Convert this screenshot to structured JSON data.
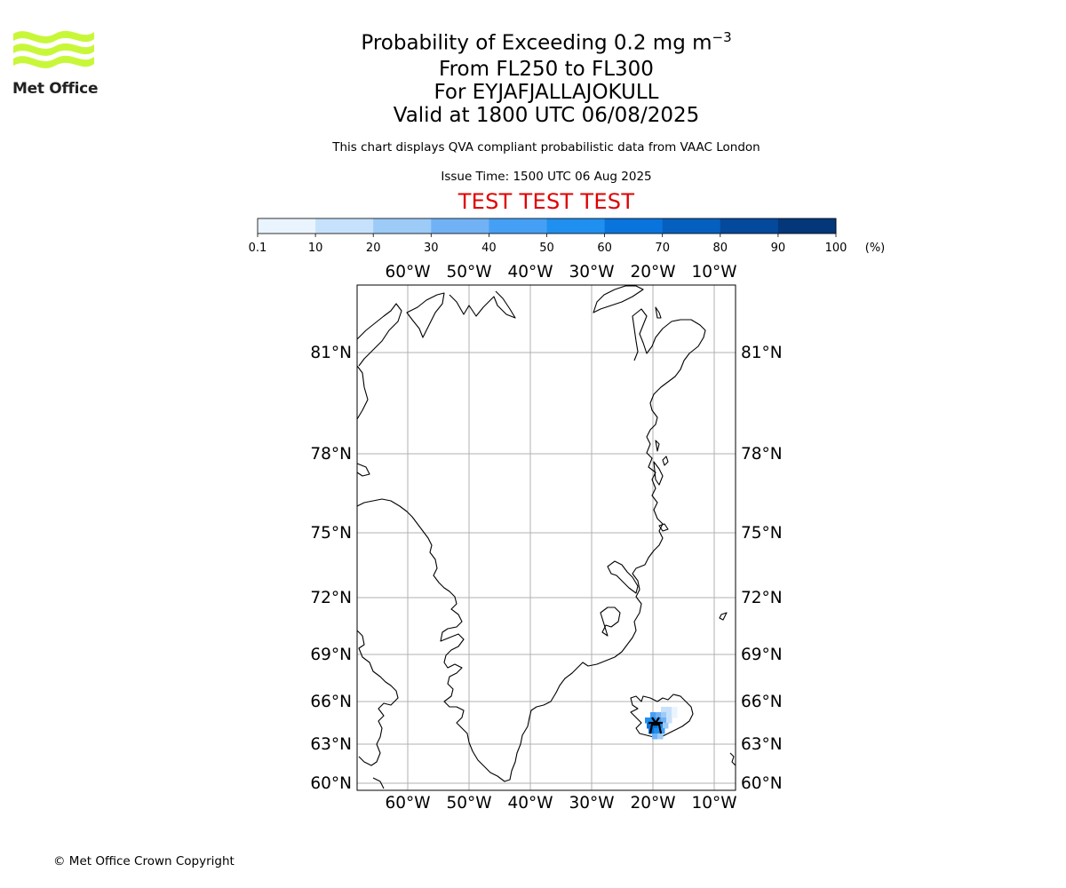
{
  "header": {
    "logo_text": "Met Office",
    "title_main": "Probability of Exceeding 0.2 mg m",
    "title_exponent": "−3",
    "title_levels": "From FL250 to FL300",
    "title_volcano": "For EYJAFJALLAJOKULL",
    "title_valid": "Valid at 1800 UTC 06/08/2025",
    "description": "This chart displays QVA compliant probabilistic data from VAAC London",
    "issue_time": "Issue Time: 1500 UTC 06 Aug 2025",
    "test_banner": "TEST TEST TEST"
  },
  "colorbar": {
    "ticks": [
      "0.1",
      "10",
      "20",
      "30",
      "40",
      "50",
      "60",
      "70",
      "80",
      "90",
      "100"
    ],
    "unit": "(%)",
    "colors": [
      "#eaf4fe",
      "#c6e1fb",
      "#9ccbf8",
      "#70b2f5",
      "#45a0f5",
      "#2090f0",
      "#0a74dd",
      "#055fbf",
      "#04499c",
      "#03377a",
      "#022a5a"
    ]
  },
  "map": {
    "lon_labels": [
      "60°W",
      "50°W",
      "40°W",
      "30°W",
      "20°W",
      "10°W"
    ],
    "lat_labels": [
      "81°N",
      "78°N",
      "75°N",
      "72°N",
      "69°N",
      "66°N",
      "63°N",
      "60°N"
    ],
    "grid_color": "#b0b0b0"
  },
  "footer": {
    "copyright": "© Met Office Crown Copyright"
  }
}
